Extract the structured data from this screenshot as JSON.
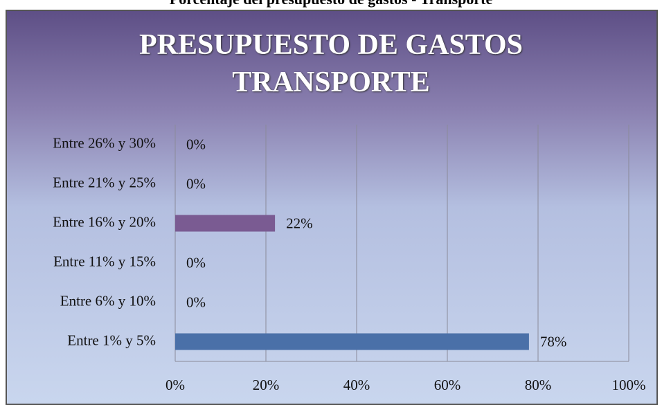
{
  "caption": "Porcentaje del presupuesto de gastos - Transporte",
  "chart_data": {
    "type": "hbar",
    "title": "PRESUPUESTO DE GASTOS TRANSPORTE",
    "categories": [
      "Entre 1% y 5%",
      "Entre 6% y 10%",
      "Entre 11% y 15%",
      "Entre 16% y 20%",
      "Entre 21% y 25%",
      "Entre 26% y 30%"
    ],
    "values": [
      78,
      0,
      0,
      22,
      0,
      0
    ],
    "value_labels": [
      "78%",
      "0%",
      "0%",
      "22%",
      "0%",
      "0%"
    ],
    "colors": [
      "#4a70a8",
      "#4a70a8",
      "#4a70a8",
      "#7a5b92",
      "#7a5b92",
      "#7a5b92"
    ],
    "xlim": [
      0,
      100
    ],
    "xticks": [
      {
        "value": 0,
        "label": "0%"
      },
      {
        "value": 20,
        "label": "20%"
      },
      {
        "value": 40,
        "label": "40%"
      },
      {
        "value": 60,
        "label": "60%"
      },
      {
        "value": 80,
        "label": "80%"
      },
      {
        "value": 100,
        "label": "100%"
      }
    ],
    "grid": true
  }
}
